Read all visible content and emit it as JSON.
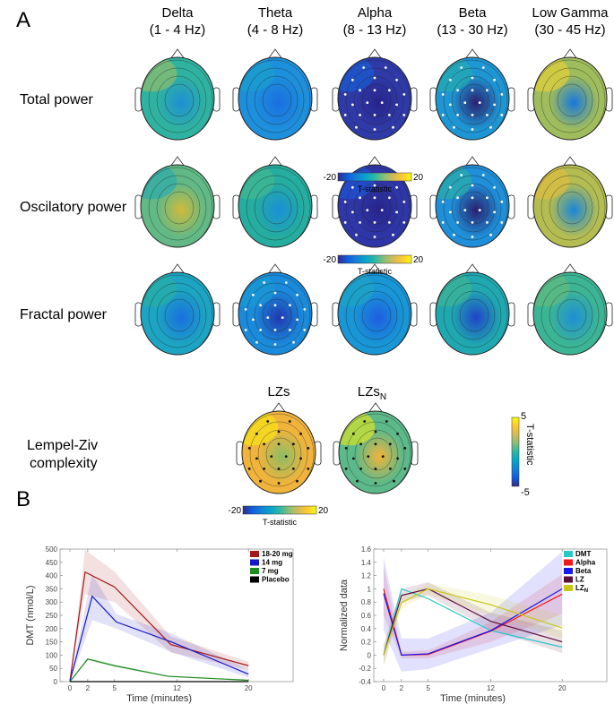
{
  "panel_a": {
    "label": "A",
    "bands": [
      {
        "name": "Delta",
        "range": "(1 - 4 Hz)"
      },
      {
        "name": "Theta",
        "range": "(4 - 8 Hz)"
      },
      {
        "name": "Alpha",
        "range": "(8 - 13 Hz)"
      },
      {
        "name": "Beta",
        "range": "(13 - 30 Hz)"
      },
      {
        "name": "Low Gamma",
        "range": "(30 - 45 Hz)"
      }
    ],
    "rows": [
      {
        "label": "Total power",
        "maps": [
          {
            "base": "#2fb3a0",
            "blob": "#1e8fd4",
            "accent": "#a9bd5c"
          },
          {
            "base": "#1d8fdb",
            "blob": "#1a6fe0",
            "accent": "#1aa3c8"
          },
          {
            "base": "#2f3aa8",
            "blob": "#27248a",
            "accent": "#1366dd",
            "electrodes": true
          },
          {
            "base": "#1e96d4",
            "blob": "#2a2070",
            "accent": "#27b3a5",
            "electrodes": true
          },
          {
            "base": "#9fbd5c",
            "blob": "#1877dd",
            "accent": "#f5d531"
          }
        ]
      },
      {
        "label": "Oscilatory power",
        "maps": [
          {
            "base": "#62b985",
            "blob": "#d0ba3c",
            "accent": "#1ea8b8"
          },
          {
            "base": "#25ad9f",
            "blob": "#1a8fd8",
            "accent": "#4ab98c"
          },
          {
            "base": "#2f37a8",
            "blob": "#27248a",
            "accent": "#1a5de0",
            "electrodes": true
          },
          {
            "base": "#1e8fd8",
            "blob": "#2a2070",
            "accent": "#30b69b",
            "electrodes": true
          },
          {
            "base": "#b4bd52",
            "blob": "#1a86d8",
            "accent": "#eabe3a"
          }
        ]
      },
      {
        "label": "Fractal power",
        "maps": [
          {
            "base": "#1ca4c2",
            "blob": "#1a6fe0",
            "accent": "#2ab19f"
          },
          {
            "base": "#1a8adb",
            "blob": "#2138b0",
            "accent": "#1a9fd0",
            "electrodes": true
          },
          {
            "base": "#1896d6",
            "blob": "#1e5ee0",
            "accent": "#20a8bd"
          },
          {
            "base": "#20a8b0",
            "blob": "#1f45c8",
            "accent": "#45b78e"
          },
          {
            "base": "#3cb595",
            "blob": "#1f8fd5",
            "accent": "#6bbb78"
          }
        ]
      }
    ],
    "colorbar": {
      "min": "-20",
      "max": "20",
      "label": "T-statistic"
    },
    "lz": {
      "row_label_1": "Lempel-Ziv",
      "row_label_2": "complexity",
      "title_1": "LZs",
      "title_2": "LZs",
      "title_2_sub": "N",
      "maps": [
        {
          "base": "#f0b43c",
          "blob": "#8cbd64",
          "accent": "#f9f00e",
          "electrodes": true
        },
        {
          "base": "#5cb98a",
          "blob": "#f0b43c",
          "accent": "#f9f00e",
          "electrodes": true
        }
      ],
      "colorbar": {
        "min": "-20",
        "max": "20",
        "label": "T-statistic"
      },
      "vertical_colorbar": {
        "min": "-5",
        "max": "5",
        "label": "T-statistic"
      }
    },
    "colormap": [
      "#352a87",
      "#0f5cdd",
      "#1481d6",
      "#06a4ca",
      "#2eb7a4",
      "#87bf77",
      "#d1bb59",
      "#fec832",
      "#f9fb0e"
    ]
  },
  "panel_b": {
    "label": "B"
  },
  "chart_data": [
    {
      "type": "line",
      "xlabel": "Time (minutes)",
      "ylabel": "DMT (nmol/L)",
      "xlim": [
        -1.1,
        25
      ],
      "ylim": [
        0,
        500
      ],
      "xticks": [
        "0",
        "2",
        "5",
        "12",
        "20"
      ],
      "yticks": [
        "0",
        "50",
        "100",
        "150",
        "200",
        "250",
        "300",
        "350",
        "400",
        "450",
        "500"
      ],
      "legend_position": "top-right",
      "series": [
        {
          "name": "18-20 mg",
          "color": "#a31818",
          "x": [
            0,
            1.7,
            5,
            11.3,
            20
          ],
          "y": [
            0,
            413,
            357,
            140,
            60
          ],
          "lower": [
            0,
            330,
            300,
            110,
            45
          ],
          "upper": [
            0,
            497,
            415,
            170,
            75
          ]
        },
        {
          "name": "14 mg",
          "color": "#1818c8",
          "x": [
            0,
            2.5,
            5.2,
            11.5,
            20
          ],
          "y": [
            0,
            322,
            225,
            148,
            28
          ],
          "lower": [
            0,
            232,
            200,
            110,
            15
          ],
          "upper": [
            0,
            405,
            255,
            180,
            45
          ]
        },
        {
          "name": "7 mg",
          "color": "#1f8a1f",
          "x": [
            0,
            2,
            5,
            11,
            20
          ],
          "y": [
            0,
            85,
            60,
            20,
            5
          ],
          "lower": [
            0,
            80,
            55,
            17,
            3
          ],
          "upper": [
            0,
            90,
            65,
            23,
            8
          ]
        },
        {
          "name": "Placebo",
          "color": "#000000",
          "x": [
            0,
            2,
            5,
            12,
            20
          ],
          "y": [
            0,
            0,
            0,
            0,
            0
          ]
        }
      ]
    },
    {
      "type": "line",
      "xlabel": "Time (minutes)",
      "ylabel": "Normalized data",
      "xlim": [
        -1.1,
        25
      ],
      "ylim": [
        -0.4,
        1.6
      ],
      "xticks": [
        "0",
        "2",
        "5",
        "12",
        "20"
      ],
      "yticks": [
        "-0.4",
        "-0.2",
        "0",
        "0.2",
        "0.4",
        "0.6",
        "0.8",
        "1",
        "1.2",
        "1.4",
        "1.6"
      ],
      "legend_position": "top-right",
      "series": [
        {
          "name": "DMT",
          "color": "#28c8c8",
          "x": [
            0,
            2,
            5,
            12,
            20
          ],
          "y": [
            0,
            1,
            0.85,
            0.37,
            0.12
          ]
        },
        {
          "name": "Alpha",
          "color": "#f01818",
          "x": [
            0,
            2,
            5,
            12,
            20
          ],
          "y": [
            1,
            0,
            0.01,
            0.36,
            0.92
          ],
          "lower": [
            0.6,
            -0.05,
            -0.05,
            0.2,
            0.62
          ],
          "upper": [
            1.35,
            0.05,
            0.07,
            0.5,
            1.22
          ]
        },
        {
          "name": "Beta",
          "color": "#1818f0",
          "x": [
            0,
            2,
            5,
            12,
            20
          ],
          "y": [
            0.93,
            0,
            0.02,
            0.37,
            1
          ],
          "lower": [
            0.38,
            -0.25,
            -0.21,
            0.1,
            0.45
          ],
          "upper": [
            1.48,
            0.25,
            0.25,
            0.64,
            1.56
          ]
        },
        {
          "name": "LZ",
          "color": "#5a0f3c",
          "x": [
            0,
            2,
            5,
            12,
            20
          ],
          "y": [
            0,
            0.9,
            1,
            0.51,
            0.2
          ],
          "lower": [
            -0.15,
            0.8,
            0.9,
            0.38,
            0.03
          ],
          "upper": [
            0.15,
            1.0,
            1.1,
            0.64,
            0.37
          ]
        },
        {
          "name": "LZ",
          "sub": "N",
          "color": "#c8c818",
          "x": [
            0,
            2,
            5,
            12,
            20
          ],
          "y": [
            0,
            0.79,
            1,
            0.76,
            0.41
          ],
          "lower": [
            -0.17,
            0.7,
            0.92,
            0.6,
            0.25
          ],
          "upper": [
            0.17,
            0.88,
            1.08,
            0.9,
            0.6
          ]
        }
      ]
    }
  ]
}
